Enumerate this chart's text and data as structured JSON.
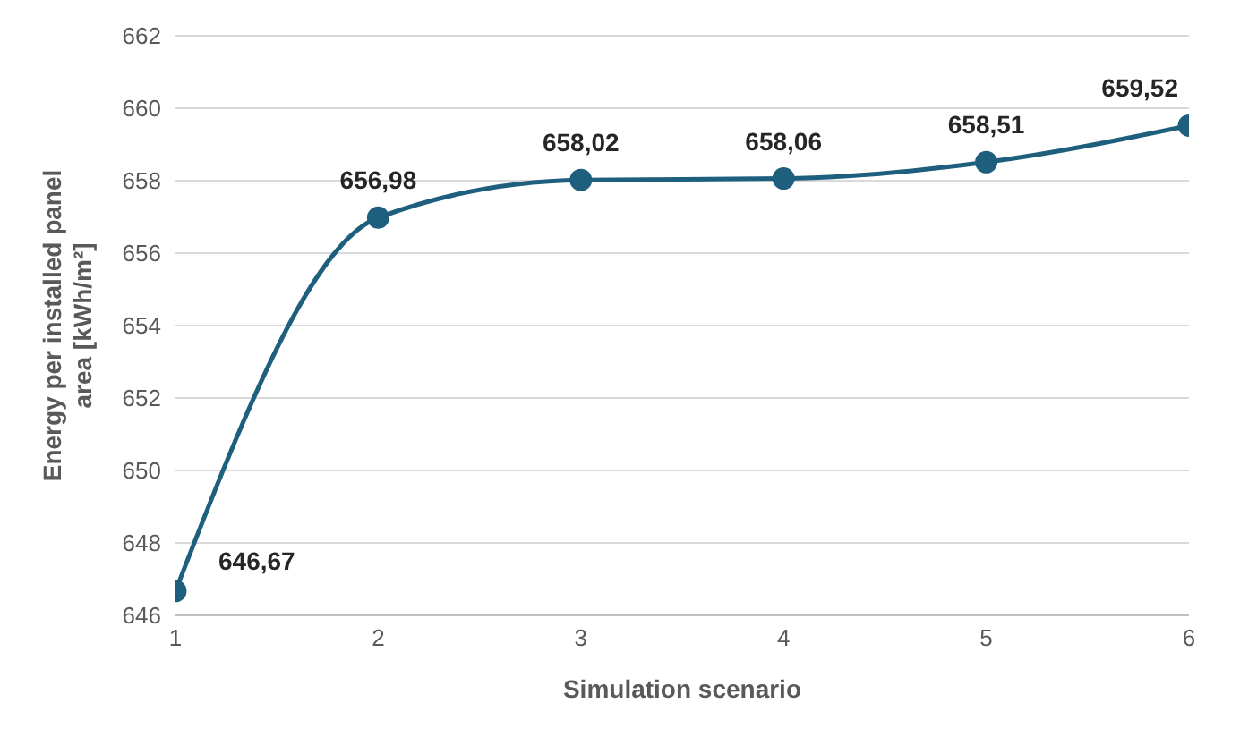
{
  "chart_data": {
    "type": "line",
    "xlabel": "Simulation scenario",
    "ylabel": "Energy per installed panel area [kWh/m²]",
    "x": [
      1,
      2,
      3,
      4,
      5,
      6
    ],
    "series": [
      {
        "color": "#1f5f7e",
        "values": [
          646.67,
          656.98,
          658.02,
          658.06,
          658.51,
          659.52
        ],
        "value_labels": [
          "646,67",
          "656,98",
          "658,02",
          "658,06",
          "658,51",
          "659,52"
        ]
      }
    ],
    "xlim": [
      1,
      6
    ],
    "xticks": [
      1,
      2,
      3,
      4,
      5,
      6
    ],
    "ylim": [
      646,
      662
    ],
    "yticks": [
      646,
      648,
      650,
      652,
      654,
      656,
      658,
      660,
      662
    ],
    "grid": "y",
    "marker": "circle",
    "line_style": "solid",
    "legend": false
  }
}
